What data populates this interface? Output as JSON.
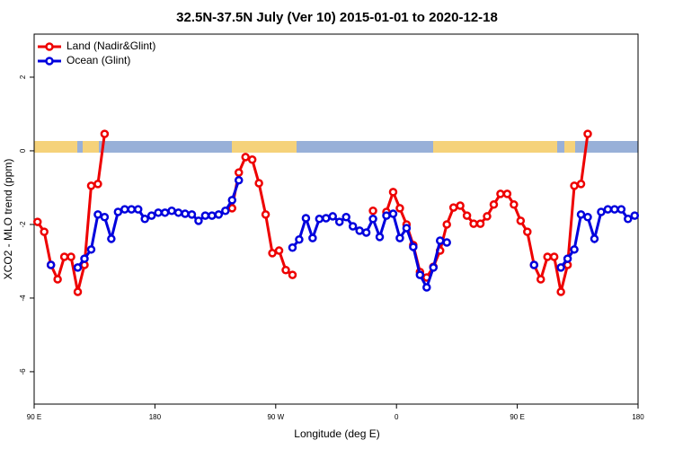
{
  "chart_data": {
    "type": "line",
    "title": "32.5N-37.5N July (Ver 10)   2015-01-01 to 2020-12-18",
    "x_label": "Longitude (deg E)",
    "y_label": "XCO2 - MLO trend (ppm)",
    "xlim": [
      90,
      540
    ],
    "ylim": [
      -6.88,
      3.17
    ],
    "xticks": [
      {
        "value": 90,
        "label": "90 E"
      },
      180,
      {
        "value": 270,
        "label": "90 W"
      },
      {
        "value": 360,
        "label": "0"
      },
      {
        "value": 450,
        "label": "90 E"
      },
      {
        "value": 540,
        "label": "180"
      }
    ],
    "yticks": [
      2,
      0,
      -2,
      -4,
      -6
    ],
    "legend": "top-left",
    "x": [
      92.5,
      97.5,
      102.5,
      107.5,
      112.5,
      117.5,
      122.5,
      127.5,
      132.5,
      137.5,
      142.5,
      147.5,
      152.5,
      157.5,
      162.5,
      167.5,
      172.5,
      177.5,
      182.5,
      187.5,
      192.5,
      197.5,
      202.5,
      207.5,
      212.5,
      217.5,
      222.5,
      227.5,
      232.5,
      237.5,
      242.5,
      247.5,
      252.5,
      257.5,
      262.5,
      267.5,
      272.5,
      277.5,
      282.5,
      287.5,
      292.5,
      297.5,
      302.5,
      307.5,
      312.5,
      317.5,
      322.5,
      327.5,
      332.5,
      337.5,
      342.5,
      347.5,
      352.5,
      357.5,
      362.5,
      367.5,
      372.5,
      377.5,
      382.5,
      387.5,
      392.5,
      397.5,
      402.5,
      407.5,
      412.5,
      417.5,
      422.5,
      427.5,
      432.5,
      437.5,
      442.5,
      447.5,
      452.5,
      457.5,
      462.5,
      467.5,
      472.5,
      477.5,
      482.5,
      487.5,
      492.5,
      497.5,
      502.5,
      507.5,
      512.5,
      517.5,
      522.5,
      527.5,
      532.5,
      537.5
    ],
    "series": [
      {
        "name": "Land (Nadir&Glint)",
        "color": "#ee0000",
        "values": [
          -1.93,
          -2.2,
          -3.1,
          -3.49,
          -2.88,
          -2.88,
          -3.83,
          -3.1,
          -0.95,
          -0.9,
          0.46,
          null,
          null,
          null,
          null,
          null,
          null,
          null,
          null,
          null,
          null,
          null,
          null,
          null,
          null,
          null,
          null,
          null,
          null,
          -1.56,
          -0.59,
          -0.17,
          -0.24,
          -0.88,
          -1.73,
          -2.78,
          -2.71,
          -3.24,
          -3.37,
          null,
          null,
          null,
          null,
          null,
          null,
          null,
          null,
          null,
          null,
          null,
          -1.63,
          null,
          -1.66,
          -1.12,
          -1.56,
          -2,
          -2.56,
          -3.29,
          -3.44,
          -3.15,
          -2.71,
          -2,
          -1.54,
          -1.49,
          -1.76,
          -1.98,
          -1.98,
          -1.78,
          -1.46,
          -1.17,
          -1.17,
          -1.46,
          -1.9,
          -2.2,
          -3.1,
          -3.49,
          -2.88,
          -2.88,
          -3.83,
          -3.1,
          -0.95,
          -0.9,
          0.46,
          null,
          null,
          null,
          null,
          null,
          null,
          null
        ]
      },
      {
        "name": "Ocean (Glint)",
        "color": "#0000dd",
        "values": [
          null,
          null,
          -3.1,
          null,
          null,
          null,
          -3.17,
          -2.93,
          -2.68,
          -1.73,
          -1.8,
          -2.39,
          -1.66,
          -1.59,
          -1.59,
          -1.59,
          -1.85,
          -1.76,
          -1.68,
          -1.68,
          -1.63,
          -1.68,
          -1.71,
          -1.73,
          -1.9,
          -1.76,
          -1.76,
          -1.73,
          -1.63,
          -1.34,
          -0.8,
          null,
          null,
          null,
          null,
          null,
          null,
          null,
          -2.63,
          -2.41,
          -1.83,
          -2.37,
          -1.85,
          -1.83,
          -1.78,
          -1.93,
          -1.8,
          -2.05,
          -2.17,
          -2.22,
          -1.85,
          -2.34,
          -1.76,
          -1.71,
          -2.37,
          -2.1,
          -2.61,
          -3.37,
          -3.71,
          -3.17,
          -2.44,
          -2.49,
          null,
          null,
          null,
          null,
          null,
          null,
          null,
          null,
          null,
          null,
          null,
          null,
          -3.1,
          null,
          null,
          null,
          -3.17,
          -2.93,
          -2.68,
          -1.73,
          -1.8,
          -2.39,
          -1.66,
          -1.59,
          -1.59,
          -1.59,
          -1.85,
          -1.76
        ]
      }
    ]
  }
}
